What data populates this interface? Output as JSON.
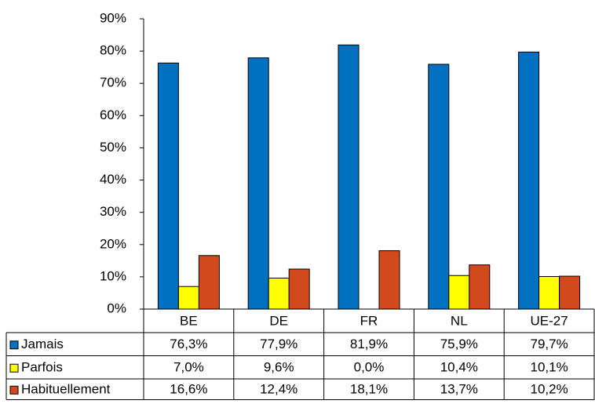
{
  "chart_data": {
    "type": "bar",
    "categories": [
      "BE",
      "DE",
      "FR",
      "NL",
      "UE-27"
    ],
    "series": [
      {
        "name": "Jamais",
        "color": "#0070c0",
        "values": [
          76.3,
          77.9,
          81.9,
          75.9,
          79.7
        ],
        "value_labels": [
          "76,3%",
          "77,9%",
          "81,9%",
          "75,9%",
          "79,7%"
        ]
      },
      {
        "name": "Parfois",
        "color": "#ffff00",
        "values": [
          7.0,
          9.6,
          0.0,
          10.4,
          10.1
        ],
        "value_labels": [
          "7,0%",
          "9,6%",
          "0,0%",
          "10,4%",
          "10,1%"
        ]
      },
      {
        "name": "Habituellement",
        "color": "#d24a1c",
        "values": [
          16.6,
          12.4,
          18.1,
          13.7,
          10.2
        ],
        "value_labels": [
          "16,6%",
          "12,4%",
          "18,1%",
          "13,7%",
          "10,2%"
        ]
      }
    ],
    "ylim": [
      0,
      90
    ],
    "yticks": [
      {
        "value": 0,
        "label": "0%"
      },
      {
        "value": 10,
        "label": "10%"
      },
      {
        "value": 20,
        "label": "20%"
      },
      {
        "value": 30,
        "label": "30%"
      },
      {
        "value": 40,
        "label": "40%"
      },
      {
        "value": 50,
        "label": "50%"
      },
      {
        "value": 60,
        "label": "60%"
      },
      {
        "value": 70,
        "label": "70%"
      },
      {
        "value": 80,
        "label": "80%"
      },
      {
        "value": 90,
        "label": "90%"
      }
    ],
    "grid": false
  }
}
